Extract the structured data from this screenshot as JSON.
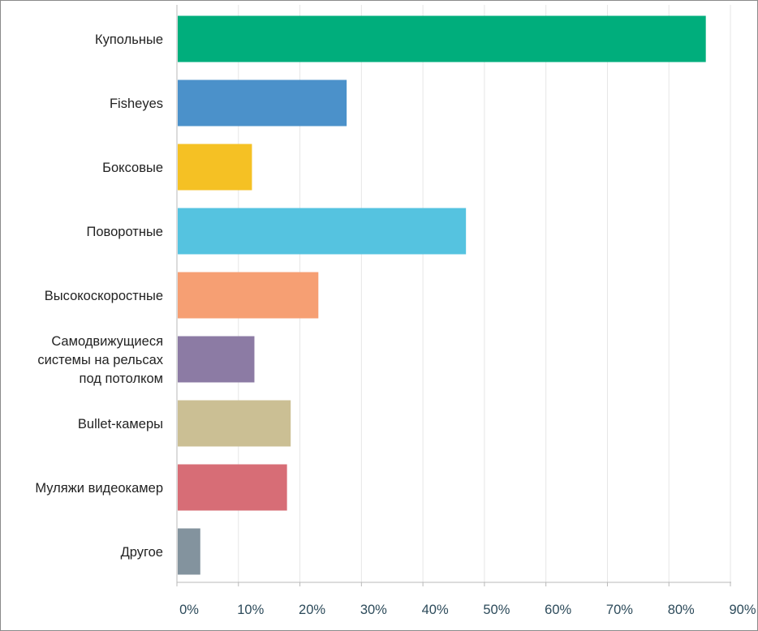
{
  "chart_data": {
    "type": "bar",
    "orientation": "horizontal",
    "categories": [
      [
        "Купольные"
      ],
      [
        "Fisheyes"
      ],
      [
        "Боксовые"
      ],
      [
        "Поворотные"
      ],
      [
        "Высокоскоростные"
      ],
      [
        "Самодвижущиеся",
        "системы на рельсах",
        "под потолком"
      ],
      [
        "Bullet-камеры"
      ],
      [
        "Муляжи видеокамер"
      ],
      [
        "Другое"
      ]
    ],
    "values": [
      86,
      27.6,
      12.2,
      47,
      23,
      12.6,
      18.5,
      17.9,
      3.8
    ],
    "colors": [
      "#00ae7c",
      "#4b91ca",
      "#f5c124",
      "#55c3e0",
      "#f69f73",
      "#8c7ba4",
      "#cbbf94",
      "#d76d76",
      "#83939e"
    ],
    "xlim": [
      0,
      90
    ],
    "x_ticks": [
      0,
      10,
      20,
      30,
      40,
      50,
      60,
      70,
      80,
      90
    ],
    "x_tick_labels": [
      "0%",
      "10%",
      "20%",
      "30%",
      "40%",
      "50%",
      "60%",
      "70%",
      "80%",
      "90%"
    ],
    "title": "",
    "xlabel": "",
    "ylabel": "",
    "grid": "vertical",
    "legend": "none"
  }
}
